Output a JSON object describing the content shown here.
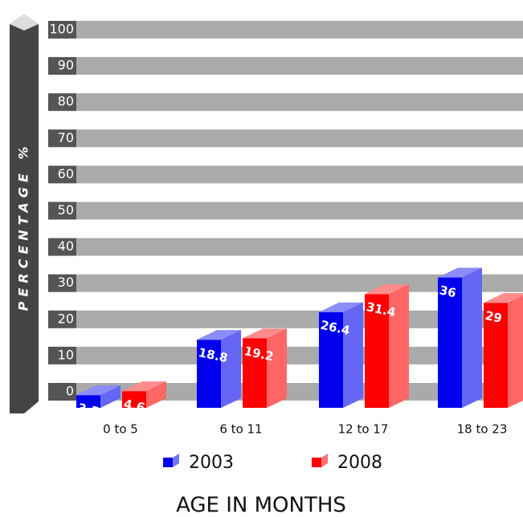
{
  "chart_data": {
    "type": "bar3d",
    "y_label": "PERCENTAGE %",
    "x_label": "AGE IN MONTHS",
    "categories": [
      "0 to 5",
      "6 to 11",
      "12 to 17",
      "18 to 23"
    ],
    "series": [
      {
        "name": "2003",
        "color": "#0000ee",
        "values": [
          3.5,
          18.8,
          26.4,
          36
        ]
      },
      {
        "name": "2008",
        "color": "#ff0000",
        "values": [
          4.6,
          19.2,
          31.4,
          29
        ]
      }
    ],
    "ylim": [
      0,
      100
    ],
    "yticks": [
      0,
      10,
      20,
      30,
      40,
      50,
      60,
      70,
      80,
      90,
      100
    ],
    "grid": true
  }
}
